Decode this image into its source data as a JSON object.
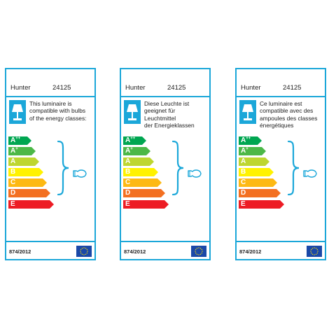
{
  "labels": [
    {
      "brand": "Hunter",
      "model": "24125",
      "text_lines": [
        "This luminaire is",
        "compatible with bulbs",
        "of the energy classes:"
      ],
      "regulation": "874/2012"
    },
    {
      "brand": "Hunter",
      "model": "24125",
      "text_lines": [
        "Diese Leuchte ist",
        "geeignet für",
        "Leuchtmittel",
        "der Energieklassen"
      ],
      "regulation": "874/2012"
    },
    {
      "brand": "Hunter",
      "model": "24125",
      "text_lines": [
        "Ce luminaire est",
        "compatible avec des",
        "ampoules des classes",
        "énergétiques"
      ],
      "regulation": "874/2012"
    }
  ],
  "energy_classes": [
    {
      "base": "A",
      "sup": "++",
      "color": "#00a651"
    },
    {
      "base": "A",
      "sup": "+",
      "color": "#4cb847"
    },
    {
      "base": "A",
      "sup": "",
      "color": "#bed630"
    },
    {
      "base": "B",
      "sup": "",
      "color": "#fff200"
    },
    {
      "base": "C",
      "sup": "",
      "color": "#fdb913"
    },
    {
      "base": "D",
      "sup": "",
      "color": "#f37021"
    },
    {
      "base": "E",
      "sup": "",
      "color": "#ed1c24"
    }
  ],
  "colors": {
    "accent": "#1ba7d9",
    "eu_flag": "#1a48a8",
    "eu_stars": "#ffdd00"
  },
  "icons": [
    "table-lamp-icon",
    "brace-icon",
    "bulb-icon",
    "eu-flag-icon"
  ]
}
